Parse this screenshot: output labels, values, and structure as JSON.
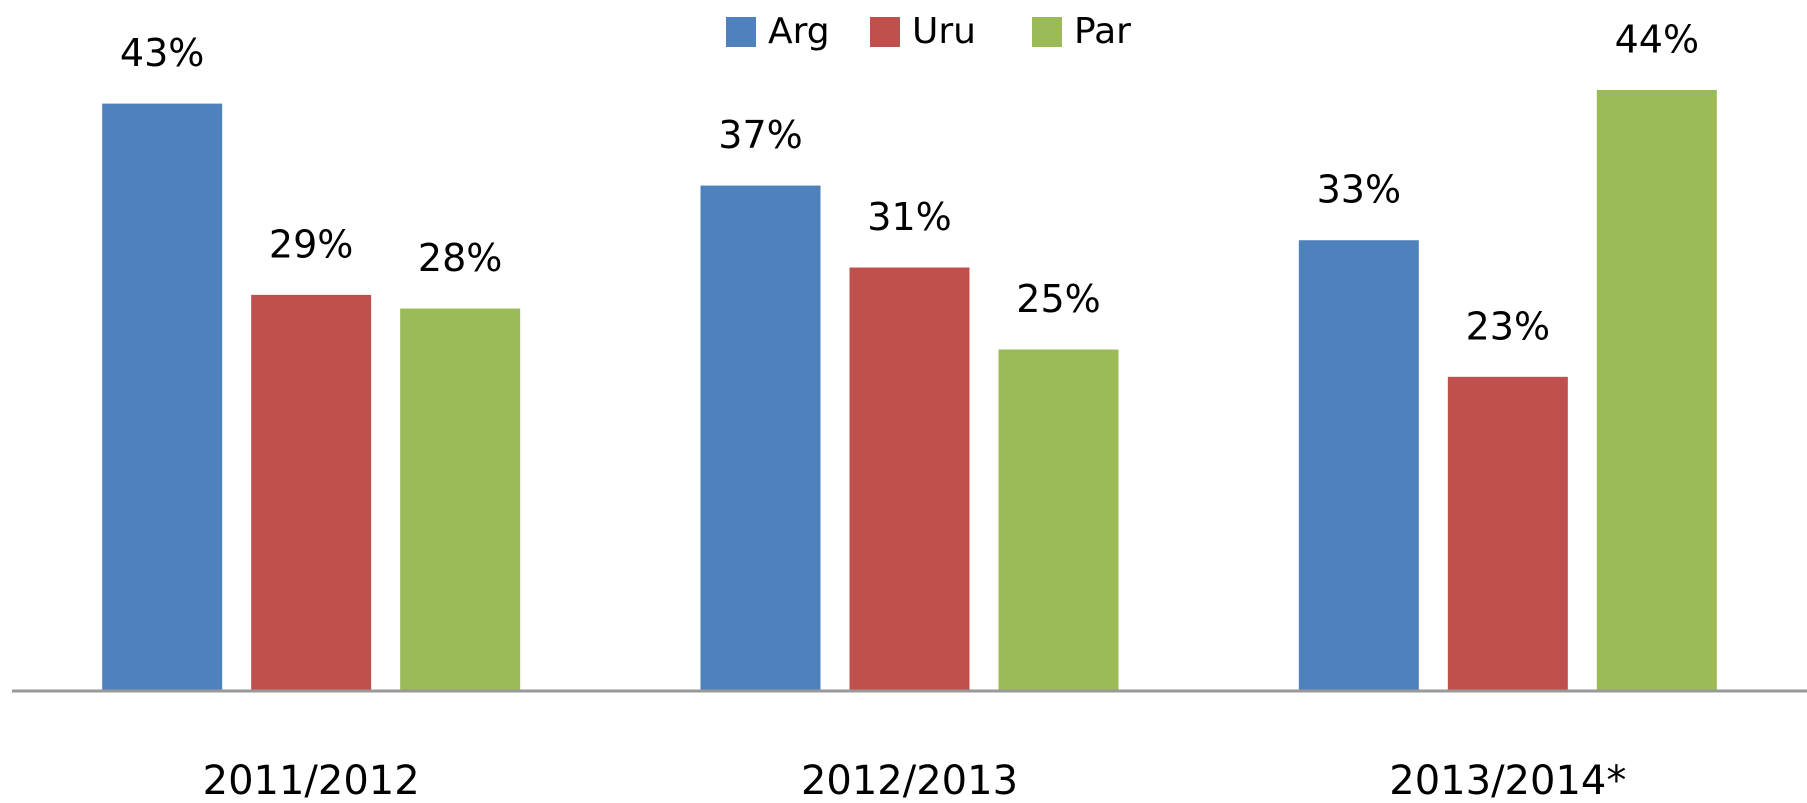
{
  "chart_data": {
    "type": "bar",
    "categories": [
      "2011/2012",
      "2012/2013",
      "2013/2014*"
    ],
    "series": [
      {
        "name": "Arg",
        "color": "#4f81bd",
        "values": [
          43,
          37,
          33
        ],
        "value_labels": [
          "43%",
          "37%",
          "33%"
        ]
      },
      {
        "name": "Uru",
        "color": "#c0504d",
        "values": [
          29,
          31,
          23
        ],
        "value_labels": [
          "29%",
          "31%",
          "23%"
        ]
      },
      {
        "name": "Par",
        "color": "#9bbb59",
        "values": [
          28,
          25,
          44
        ],
        "value_labels": [
          "28%",
          "25%",
          "44%"
        ]
      }
    ],
    "ylim": [
      0,
      50
    ],
    "legend": "top",
    "grid": false
  }
}
